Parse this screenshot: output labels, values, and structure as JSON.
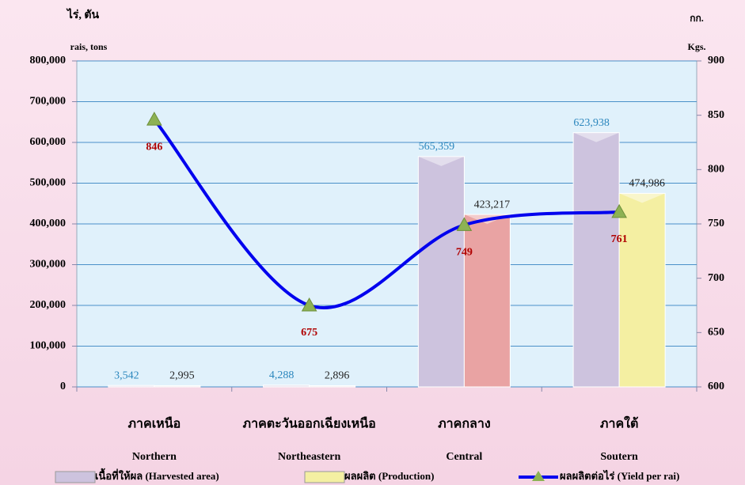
{
  "chart_data": {
    "type": "bar_line",
    "y_title": [
      "ไร่, ตัน",
      "rais, tons"
    ],
    "y2_title": [
      "กก.",
      "Kgs."
    ],
    "categories": [
      "ภาคเหนือ",
      "ภาคตะวันออกเฉียงเหนือ",
      "ภาคกลาง",
      "ภาคใต้"
    ],
    "categories_en": [
      "Northern",
      "Northeastern",
      "Central",
      "Soutern"
    ],
    "ylim": [
      0,
      800000
    ],
    "yticks": [
      0,
      {
        "value": 100000,
        "label": "100,000"
      },
      {
        "value": 200000,
        "label": "200,000"
      },
      {
        "value": 300000,
        "label": "300,000"
      },
      {
        "value": 400000,
        "label": "400,000"
      },
      {
        "value": 500000,
        "label": "500,000"
      },
      {
        "value": 600000,
        "label": "600,000"
      },
      {
        "value": 700000,
        "label": "700,000"
      },
      {
        "value": 800000,
        "label": "800,000"
      }
    ],
    "y2lim": [
      600,
      900
    ],
    "y2ticks": [
      600,
      650,
      700,
      750,
      800,
      850,
      900
    ],
    "grid": true,
    "series": [
      {
        "name": "เนื้อที่ให้ผล  (Harvested area)",
        "color": "#cdc3de",
        "colors": [
          "#e6e1ec",
          "#e6e1ec",
          "#cdc3de",
          "#cdc3de"
        ],
        "label_color": "#2a86bd",
        "values": [
          3542,
          4288,
          565359,
          623938
        ],
        "value_labels": [
          "3,542",
          "4,288",
          "565,359",
          "623,938"
        ]
      },
      {
        "name": "ผลผลิต  (Production)",
        "color": "#f4efa2",
        "colors": [
          "#eeeeee",
          "#eeeeee",
          "#e9a3a3",
          "#f4efa2"
        ],
        "label_color": "#222222",
        "values": [
          2995,
          2896,
          423217,
          474986
        ],
        "value_labels": [
          "2,995",
          "2,896",
          "423,217",
          "474,986"
        ]
      },
      {
        "name": "ผลผลิตต่อไร่ (Yield per rai)",
        "color": "#0000ee",
        "marker_color": "#8db254",
        "label_color": "#b00000",
        "axis": "y2",
        "values": [
          846,
          675,
          749,
          761
        ]
      }
    ]
  }
}
